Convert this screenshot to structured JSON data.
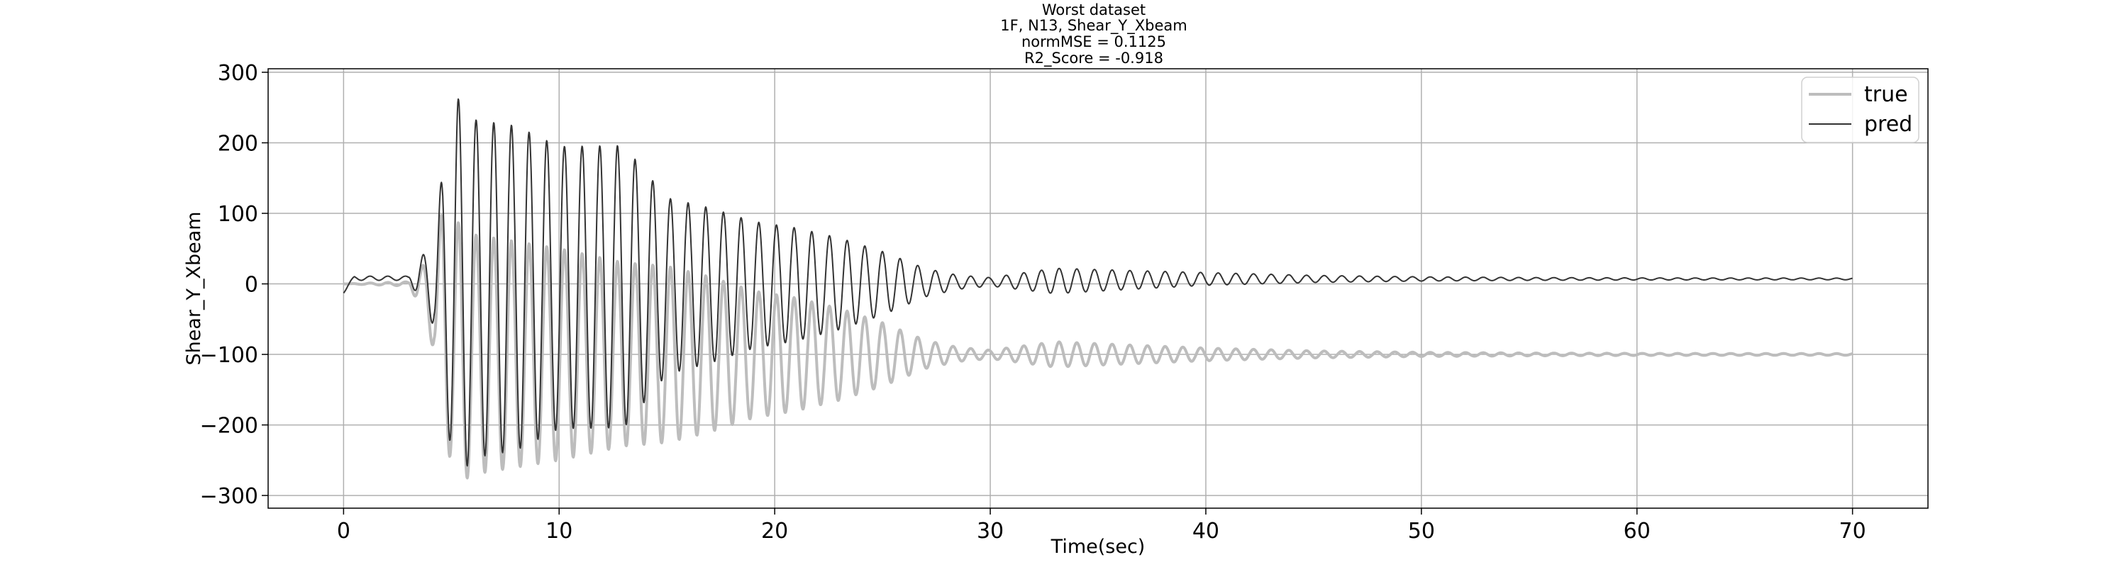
{
  "chart_data": {
    "type": "line",
    "title_lines": [
      "Worst dataset",
      "1F, N13, Shear_Y_Xbeam",
      "normMSE = 0.1125",
      "R2_Score = -0.918"
    ],
    "xlabel": "Time(sec)",
    "ylabel": "Shear_Y_Xbeam",
    "xlim": [
      -3.5,
      73.5
    ],
    "ylim": [
      -318,
      305
    ],
    "x_ticks": [
      0,
      10,
      20,
      30,
      40,
      50,
      60,
      70
    ],
    "y_ticks": [
      -300,
      -200,
      -100,
      0,
      100,
      200,
      300
    ],
    "y_tick_labels": [
      "−300",
      "−200",
      "−100",
      "0",
      "100",
      "200",
      "300"
    ],
    "grid": true,
    "legend_position": "top-right",
    "sample_dt": 0.02,
    "series": [
      {
        "name": "true",
        "color": "#bdbdbd",
        "linewidth": 4,
        "frequency_hz": 1.22,
        "phase_cycles": 0.75,
        "envelope": [
          [
            0,
            0
          ],
          [
            3,
            3
          ],
          [
            4.2,
            60
          ],
          [
            4.6,
            170
          ],
          [
            5.5,
            180
          ],
          [
            6,
            170
          ],
          [
            8,
            160
          ],
          [
            10,
            150
          ],
          [
            13,
            130
          ],
          [
            15,
            125
          ],
          [
            17,
            110
          ],
          [
            19,
            90
          ],
          [
            21,
            80
          ],
          [
            23,
            65
          ],
          [
            25,
            45
          ],
          [
            27,
            20
          ],
          [
            28.5,
            10
          ],
          [
            30,
            6
          ],
          [
            33,
            18
          ],
          [
            36,
            14
          ],
          [
            40,
            9
          ],
          [
            45,
            5
          ],
          [
            50,
            3
          ],
          [
            55,
            2
          ],
          [
            60,
            1.5
          ],
          [
            70,
            1.2
          ]
        ],
        "offset": [
          [
            0,
            0
          ],
          [
            3.5,
            0
          ],
          [
            4.5,
            -50
          ],
          [
            5.5,
            -100
          ],
          [
            40,
            -100
          ],
          [
            70,
            -100
          ]
        ]
      },
      {
        "name": "pred",
        "color": "#333333",
        "linewidth": 2,
        "frequency_hz": 1.22,
        "phase_cycles": 0.75,
        "envelope": [
          [
            0,
            3
          ],
          [
            3,
            3
          ],
          [
            4.2,
            60
          ],
          [
            4.6,
            170
          ],
          [
            5.3,
            270
          ],
          [
            6,
            240
          ],
          [
            8,
            230
          ],
          [
            10,
            200
          ],
          [
            13,
            200
          ],
          [
            15,
            125
          ],
          [
            17,
            110
          ],
          [
            19,
            90
          ],
          [
            21,
            80
          ],
          [
            23,
            65
          ],
          [
            25,
            45
          ],
          [
            27,
            20
          ],
          [
            28.5,
            10
          ],
          [
            30,
            6
          ],
          [
            33,
            18
          ],
          [
            36,
            14
          ],
          [
            40,
            9
          ],
          [
            45,
            5
          ],
          [
            50,
            3
          ],
          [
            55,
            2
          ],
          [
            60,
            1.5
          ],
          [
            70,
            1.2
          ]
        ],
        "offset": [
          [
            0,
            -10
          ],
          [
            0.5,
            8
          ],
          [
            3.5,
            8
          ],
          [
            4.5,
            -5
          ],
          [
            5.5,
            -7
          ],
          [
            40,
            7
          ],
          [
            70,
            7
          ]
        ]
      }
    ]
  }
}
